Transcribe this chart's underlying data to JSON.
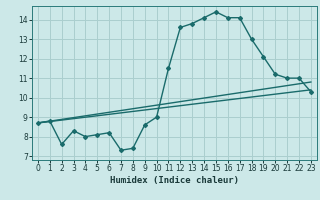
{
  "title": "",
  "xlabel": "Humidex (Indice chaleur)",
  "ylabel": "",
  "bg_color": "#cce8e8",
  "grid_color": "#aacece",
  "line_color": "#1a6b6b",
  "xlim": [
    -0.5,
    23.5
  ],
  "ylim": [
    6.8,
    14.7
  ],
  "yticks": [
    7,
    8,
    9,
    10,
    11,
    12,
    13,
    14
  ],
  "xticks": [
    0,
    1,
    2,
    3,
    4,
    5,
    6,
    7,
    8,
    9,
    10,
    11,
    12,
    13,
    14,
    15,
    16,
    17,
    18,
    19,
    20,
    21,
    22,
    23
  ],
  "series1_x": [
    0,
    1,
    2,
    3,
    4,
    5,
    6,
    7,
    8,
    9,
    10,
    11,
    12,
    13,
    14,
    15,
    16,
    17,
    18,
    19,
    20,
    21,
    22,
    23
  ],
  "series1_y": [
    8.7,
    8.8,
    7.6,
    8.3,
    8.0,
    8.1,
    8.2,
    7.3,
    7.4,
    8.6,
    9.0,
    11.5,
    13.6,
    13.8,
    14.1,
    14.4,
    14.1,
    14.1,
    13.0,
    12.1,
    11.2,
    11.0,
    11.0,
    10.3
  ],
  "series2_x": [
    0,
    23
  ],
  "series2_y": [
    8.7,
    10.4
  ],
  "series3_x": [
    0,
    23
  ],
  "series3_y": [
    8.7,
    10.8
  ],
  "marker": "D",
  "marker_size": 2.0,
  "line_width": 1.0,
  "tick_fontsize": 5.5,
  "xlabel_fontsize": 6.5
}
